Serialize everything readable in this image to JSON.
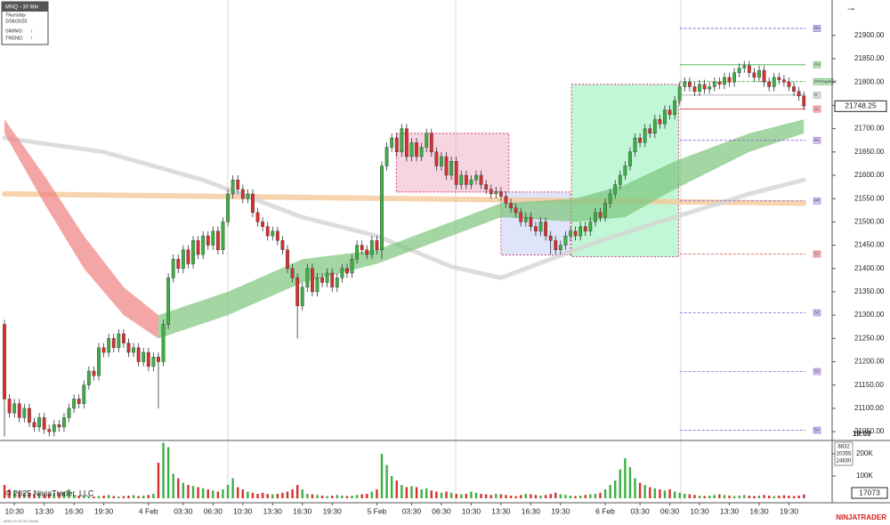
{
  "chart_data": {
    "type": "candlestick",
    "title": "MNQ - 30 Min",
    "day": "Thursday",
    "date": "2/06/2025",
    "swing_label": "SWING:",
    "swing": "↓",
    "trend_label": "TREND:",
    "trend": "↑",
    "instrument_note": "MNQ 03-25 30 Minute",
    "copyright": "© 2025 NinjaTrader, LLC",
    "brand": "NINJATRADER",
    "bar_timer": "18:09",
    "up_color": "#3cb043",
    "down_color": "#d8302f",
    "xlim": [
      -0.9,
      166.7
    ],
    "xticks": [
      {
        "value": 2,
        "label": "10:30"
      },
      {
        "value": 8,
        "label": "13:30"
      },
      {
        "value": 14,
        "label": "16:30"
      },
      {
        "value": 20,
        "label": "19:30"
      },
      {
        "value": 29,
        "label": "4 Feb"
      },
      {
        "value": 36,
        "label": "03:30"
      },
      {
        "value": 42,
        "label": "06:30"
      },
      {
        "value": 48,
        "label": "10:30"
      },
      {
        "value": 54,
        "label": "13:30"
      },
      {
        "value": 60,
        "label": "16:30"
      },
      {
        "value": 66,
        "label": "19:30"
      },
      {
        "value": 75,
        "label": "5 Feb"
      },
      {
        "value": 82,
        "label": "03:30"
      },
      {
        "value": 88,
        "label": "06:30"
      },
      {
        "value": 94,
        "label": "10:30"
      },
      {
        "value": 100,
        "label": "13:30"
      },
      {
        "value": 106,
        "label": "16:30"
      },
      {
        "value": 112,
        "label": "19:30"
      },
      {
        "value": 121,
        "label": "6 Feb"
      },
      {
        "value": 128,
        "label": "03:30"
      },
      {
        "value": 134,
        "label": "06:30"
      },
      {
        "value": 140,
        "label": "10:30"
      },
      {
        "value": 146,
        "label": "13:30"
      },
      {
        "value": 152,
        "label": "16:30"
      },
      {
        "value": 158,
        "label": "19:30"
      }
    ],
    "ylim": [
      21033,
      21976
    ],
    "yticks": [
      {
        "value": 21050,
        "label": "21050.00"
      },
      {
        "value": 21100,
        "label": "21100.00"
      },
      {
        "value": 21150,
        "label": "21150.00"
      },
      {
        "value": 21200,
        "label": "21200.00"
      },
      {
        "value": 21250,
        "label": "21250.00"
      },
      {
        "value": 21300,
        "label": "21300.00"
      },
      {
        "value": 21350,
        "label": "21350.00"
      },
      {
        "value": 21400,
        "label": "21400.00"
      },
      {
        "value": 21450,
        "label": "21450.00"
      },
      {
        "value": 21500,
        "label": "21500.00"
      },
      {
        "value": 21550,
        "label": "21550.00"
      },
      {
        "value": 21600,
        "label": "21600.00"
      },
      {
        "value": 21650,
        "label": "21650.00"
      },
      {
        "value": 21700,
        "label": "21700.00"
      },
      {
        "value": 21750,
        "label": "21750.00"
      },
      {
        "value": 21800,
        "label": "21800.00"
      },
      {
        "value": 21850,
        "label": "21850.00"
      },
      {
        "value": 21900,
        "label": "21900.00"
      }
    ],
    "open": [
      21280,
      21120,
      21090,
      21110,
      21080,
      21100,
      21070,
      21060,
      21080,
      21055,
      21050,
      21065,
      21060,
      21080,
      21100,
      21120,
      21110,
      21150,
      21180,
      21170,
      21230,
      21220,
      21250,
      21230,
      21260,
      21240,
      21220,
      21230,
      21200,
      21220,
      21190,
      21210,
      21200,
      21280,
      21380,
      21420,
      21400,
      21440,
      21410,
      21460,
      21430,
      21470,
      21450,
      21480,
      21440,
      21500,
      21560,
      21590,
      21570,
      21550,
      21560,
      21520,
      21500,
      21490,
      21470,
      21480,
      21460,
      21440,
      21400,
      21380,
      21320,
      21360,
      21400,
      21350,
      21380,
      21370,
      21390,
      21360,
      21380,
      21400,
      21390,
      21420,
      21450,
      21440,
      21430,
      21460,
      21440,
      21620,
      21660,
      21680,
      21650,
      21700,
      21640,
      21670,
      21640,
      21660,
      21690,
      21650,
      21620,
      21640,
      21600,
      21630,
      21580,
      21600,
      21580,
      21590,
      21600,
      21580,
      21570,
      21560,
      21565,
      21555,
      21540,
      21530,
      21520,
      21500,
      21510,
      21490,
      21480,
      21500,
      21470,
      21460,
      21440,
      21450,
      21470,
      21480,
      21470,
      21490,
      21480,
      21500,
      21520,
      21510,
      21540,
      21560,
      21580,
      21600,
      21620,
      21650,
      21680,
      21670,
      21700,
      21690,
      21720,
      21710,
      21740,
      21730,
      21760,
      21790,
      21800,
      21790,
      21780,
      21795,
      21785,
      21790,
      21800,
      21795,
      21810,
      21800,
      21820,
      21830,
      21835,
      21820,
      21810,
      21825,
      21800,
      21790,
      21810,
      21805,
      21800,
      21790,
      21780,
      21770
    ],
    "high": [
      21290,
      21130,
      21120,
      21120,
      21110,
      21110,
      21080,
      21090,
      21090,
      21065,
      21075,
      21075,
      21090,
      21110,
      21130,
      21130,
      21160,
      21190,
      21190,
      21240,
      21240,
      21260,
      21260,
      21270,
      21270,
      21250,
      21240,
      21240,
      21230,
      21230,
      21220,
      21220,
      21290,
      21390,
      21430,
      21430,
      21450,
      21450,
      21470,
      21470,
      21480,
      21480,
      21490,
      21490,
      21510,
      21570,
      21600,
      21600,
      21580,
      21570,
      21570,
      21530,
      21510,
      21500,
      21490,
      21490,
      21470,
      21450,
      21410,
      21390,
      21370,
      21410,
      21410,
      21390,
      21390,
      21400,
      21400,
      21390,
      21410,
      21410,
      21430,
      21460,
      21460,
      21450,
      21470,
      21470,
      21630,
      21670,
      21690,
      21690,
      21710,
      21710,
      21680,
      21680,
      21670,
      21700,
      21700,
      21660,
      21650,
      21650,
      21640,
      21640,
      21610,
      21610,
      21600,
      21610,
      21610,
      21590,
      21580,
      21575,
      21575,
      21565,
      21550,
      21540,
      21530,
      21520,
      21520,
      21500,
      21510,
      21510,
      21480,
      21470,
      21460,
      21480,
      21490,
      21490,
      21500,
      21500,
      21510,
      21530,
      21530,
      21550,
      21570,
      21590,
      21610,
      21630,
      21660,
      21690,
      21690,
      21710,
      21710,
      21730,
      21730,
      21750,
      21750,
      21770,
      21800,
      21810,
      21810,
      21800,
      21805,
      21805,
      21800,
      21810,
      21810,
      21820,
      21820,
      21830,
      21840,
      21845,
      21845,
      21830,
      21835,
      21835,
      21810,
      21820,
      21820,
      21815,
      21810,
      21800,
      21790,
      21780
    ],
    "low": [
      21040,
      21080,
      21080,
      21070,
      21070,
      21060,
      21050,
      21050,
      21045,
      21040,
      21040,
      21050,
      21050,
      21070,
      21090,
      21100,
      21100,
      21140,
      21160,
      21160,
      21210,
      21210,
      21220,
      21220,
      21230,
      21210,
      21210,
      21190,
      21190,
      21180,
      21180,
      21100,
      21190,
      21270,
      21370,
      21390,
      21390,
      21400,
      21400,
      21420,
      21420,
      21440,
      21440,
      21430,
      21430,
      21490,
      21550,
      21560,
      21540,
      21540,
      21510,
      21490,
      21480,
      21460,
      21460,
      21450,
      21430,
      21390,
      21370,
      21250,
      21310,
      21350,
      21340,
      21340,
      21360,
      21360,
      21350,
      21350,
      21370,
      21380,
      21380,
      21410,
      21430,
      21420,
      21420,
      21430,
      21420,
      21610,
      21650,
      21640,
      21640,
      21630,
      21630,
      21630,
      21630,
      21650,
      21640,
      21610,
      21610,
      21590,
      21590,
      21570,
      21570,
      21570,
      21570,
      21580,
      21570,
      21560,
      21550,
      21550,
      21545,
      21530,
      21520,
      21510,
      21490,
      21490,
      21480,
      21470,
      21470,
      21460,
      21430,
      21430,
      21430,
      21440,
      21460,
      21460,
      21460,
      21470,
      21470,
      21490,
      21500,
      21500,
      21530,
      21550,
      21570,
      21590,
      21610,
      21640,
      21660,
      21660,
      21680,
      21680,
      21700,
      21700,
      21720,
      21720,
      21750,
      21780,
      21780,
      21770,
      21770,
      21775,
      21775,
      21780,
      21785,
      21785,
      21790,
      21790,
      21810,
      21820,
      21810,
      21800,
      21800,
      21790,
      21780,
      21780,
      21795,
      21790,
      21780,
      21770,
      21760,
      21740
    ],
    "close": [
      21120,
      21090,
      21110,
      21080,
      21100,
      21070,
      21060,
      21080,
      21055,
      21050,
      21065,
      21060,
      21080,
      21100,
      21120,
      21110,
      21150,
      21180,
      21170,
      21230,
      21220,
      21250,
      21230,
      21260,
      21240,
      21220,
      21230,
      21200,
      21220,
      21190,
      21210,
      21200,
      21280,
      21380,
      21420,
      21400,
      21440,
      21410,
      21460,
      21430,
      21470,
      21450,
      21480,
      21440,
      21500,
      21560,
      21590,
      21570,
      21550,
      21560,
      21520,
      21500,
      21490,
      21470,
      21480,
      21460,
      21440,
      21400,
      21380,
      21320,
      21360,
      21400,
      21350,
      21380,
      21370,
      21390,
      21360,
      21380,
      21400,
      21390,
      21420,
      21450,
      21440,
      21430,
      21460,
      21440,
      21620,
      21660,
      21680,
      21650,
      21700,
      21640,
      21670,
      21640,
      21660,
      21690,
      21650,
      21620,
      21640,
      21600,
      21630,
      21580,
      21600,
      21580,
      21590,
      21600,
      21580,
      21570,
      21560,
      21565,
      21555,
      21540,
      21530,
      21520,
      21500,
      21510,
      21490,
      21480,
      21500,
      21470,
      21460,
      21440,
      21450,
      21470,
      21480,
      21470,
      21490,
      21480,
      21500,
      21520,
      21510,
      21540,
      21560,
      21580,
      21600,
      21620,
      21650,
      21680,
      21670,
      21700,
      21690,
      21720,
      21710,
      21740,
      21730,
      21760,
      21790,
      21800,
      21790,
      21780,
      21795,
      21785,
      21790,
      21800,
      21795,
      21810,
      21800,
      21820,
      21830,
      21835,
      21820,
      21810,
      21825,
      21800,
      21790,
      21810,
      21805,
      21800,
      21790,
      21780,
      21770,
      21748.25
    ],
    "volume": {
      "values": [
        60000,
        40000,
        35000,
        30000,
        25000,
        22000,
        20000,
        25000,
        20000,
        18000,
        22000,
        25000,
        30000,
        40000,
        15000,
        12000,
        10000,
        10000,
        8000,
        10000,
        12000,
        15000,
        10000,
        8000,
        10000,
        12000,
        14000,
        10000,
        12000,
        15000,
        20000,
        160000,
        250000,
        230000,
        110000,
        90000,
        70000,
        60000,
        55000,
        50000,
        45000,
        40000,
        35000,
        30000,
        40000,
        60000,
        90000,
        50000,
        40000,
        30000,
        25000,
        20000,
        25000,
        20000,
        18000,
        20000,
        25000,
        30000,
        40000,
        60000,
        40000,
        20000,
        18000,
        15000,
        12000,
        10000,
        12000,
        15000,
        12000,
        10000,
        12000,
        15000,
        18000,
        20000,
        30000,
        40000,
        200000,
        150000,
        100000,
        80000,
        60000,
        50000,
        55000,
        50000,
        40000,
        45000,
        35000,
        30000,
        25000,
        30000,
        25000,
        20000,
        18000,
        20000,
        30000,
        25000,
        20000,
        18000,
        15000,
        20000,
        18000,
        15000,
        12000,
        10000,
        15000,
        20000,
        18000,
        15000,
        12000,
        15000,
        20000,
        25000,
        18000,
        15000,
        12000,
        10000,
        12000,
        15000,
        18000,
        20000,
        25000,
        40000,
        60000,
        80000,
        130000,
        180000,
        140000,
        90000,
        70000,
        60000,
        50000,
        45000,
        40000,
        35000,
        40000,
        30000,
        25000,
        20000,
        18000,
        15000,
        12000,
        10000,
        12000,
        15000,
        18000,
        15000,
        12000,
        10000,
        12000,
        15000,
        12000,
        10000,
        12000,
        15000,
        12000,
        10000,
        12000,
        14000,
        12000,
        10000,
        12000,
        17073
      ],
      "ylim": [
        0,
        256000
      ],
      "yticks": [
        {
          "value": 200000,
          "label": "200K"
        },
        {
          "value": 100000,
          "label": "100K"
        }
      ],
      "box": [
        "8832",
        "20355",
        "24830"
      ]
    },
    "levels": [
      {
        "label": "R2",
        "value": 21915,
        "color": "#5b5bd6",
        "dash": true
      },
      {
        "label": "CH",
        "value": 21837,
        "color": "#3cb043",
        "dash": false
      },
      {
        "label": "PH/Gap/Mid",
        "value": 21801,
        "color": "#3cb043",
        "dash": true
      },
      {
        "label": "O",
        "value": 21772,
        "color": "#999999",
        "dash": false
      },
      {
        "label": "CL",
        "value": 21742,
        "color": "#e04040",
        "dash": false
      },
      {
        "label": "R1",
        "value": 21675,
        "color": "#8a5bd6",
        "dash": true
      },
      {
        "label": "PP",
        "value": 21545,
        "color": "#8a5bd6",
        "dash": true
      },
      {
        "label": "S1",
        "value": 21431,
        "color": "#e04040",
        "dash": true
      },
      {
        "label": "S2",
        "value": 21305,
        "color": "#8a5bd6",
        "dash": true
      },
      {
        "label": "S3",
        "value": 21179,
        "color": "#8a5bd6",
        "dash": true
      },
      {
        "label": "S4",
        "value": 21053,
        "color": "#5b5bd6",
        "dash": true
      }
    ],
    "zones": [
      {
        "start": 78.9,
        "end": 101.6,
        "top": 21690,
        "bottom": 21564,
        "fill": "#f0b0c8",
        "stroke": "#d02060"
      },
      {
        "start": 100,
        "end": 114,
        "top": 21564,
        "bottom": 21429,
        "fill": "#c4d0f4",
        "stroke": "#d02060"
      },
      {
        "start": 114.2,
        "end": 135.8,
        "top": 21795,
        "bottom": 21425,
        "fill": "#8ef0b4",
        "stroke": "#d02060"
      }
    ],
    "bands": [
      {
        "color": "#f08080",
        "x": [
          0,
          8,
          16,
          24,
          31
        ],
        "upper": [
          21720,
          21600,
          21470,
          21360,
          21300
        ],
        "lower": [
          21690,
          21540,
          21400,
          21300,
          21250
        ]
      },
      {
        "color": "#7cc47c",
        "x": [
          31,
          45,
          60,
          75,
          90,
          100,
          115,
          125,
          135,
          150,
          161
        ],
        "upper": [
          21300,
          21350,
          21420,
          21440,
          21500,
          21540,
          21550,
          21580,
          21630,
          21690,
          21720
        ],
        "lower": [
          21250,
          21300,
          21370,
          21410,
          21470,
          21510,
          21500,
          21510,
          21570,
          21650,
          21690
        ]
      }
    ],
    "lines": [
      {
        "color": "#f5c89a",
        "width": 6,
        "x": [
          0,
          40,
          80,
          120,
          161
        ],
        "values": [
          21560,
          21555,
          21550,
          21545,
          21540
        ]
      },
      {
        "color": "#d4d4d4",
        "width": 5,
        "x": [
          0,
          20,
          40,
          60,
          75,
          90,
          100,
          110,
          120,
          135,
          150,
          161
        ],
        "values": [
          21680,
          21650,
          21590,
          21510,
          21470,
          21404,
          21380,
          21420,
          21460,
          21510,
          21560,
          21590
        ]
      }
    ]
  }
}
